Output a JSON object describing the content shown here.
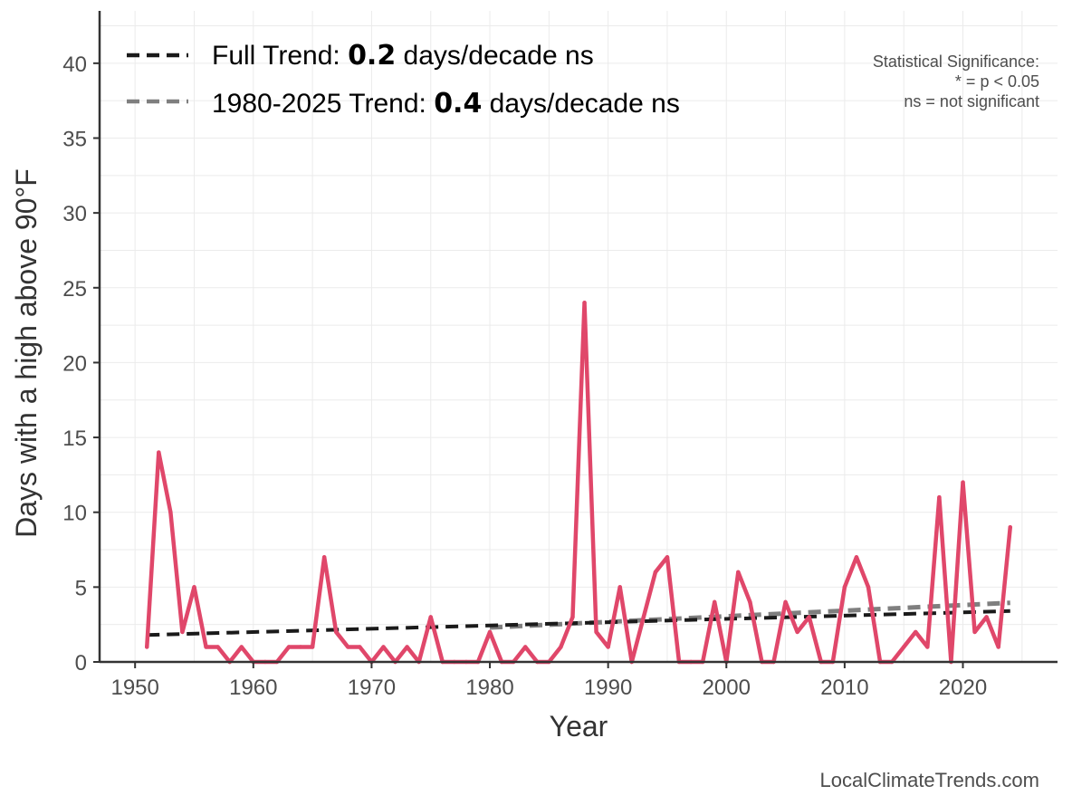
{
  "chart_data": {
    "type": "line",
    "xlabel": "Year",
    "ylabel": "Days with a high above 90°F",
    "xlim": [
      1947,
      2028
    ],
    "ylim": [
      0,
      43.5
    ],
    "x_ticks": [
      1950,
      1960,
      1970,
      1980,
      1990,
      2000,
      2010,
      2020
    ],
    "y_ticks": [
      0,
      5,
      10,
      15,
      20,
      25,
      30,
      35,
      40
    ],
    "grid": true,
    "series": [
      {
        "name": "Days above 90°F",
        "color": "#e0476a",
        "x": [
          1951,
          1952,
          1953,
          1954,
          1955,
          1956,
          1957,
          1958,
          1959,
          1960,
          1961,
          1962,
          1963,
          1964,
          1965,
          1966,
          1967,
          1968,
          1969,
          1970,
          1971,
          1972,
          1973,
          1974,
          1975,
          1976,
          1977,
          1978,
          1979,
          1980,
          1981,
          1982,
          1983,
          1984,
          1985,
          1986,
          1987,
          1988,
          1989,
          1990,
          1991,
          1992,
          1993,
          1994,
          1995,
          1996,
          1997,
          1998,
          1999,
          2000,
          2001,
          2002,
          2003,
          2004,
          2005,
          2006,
          2007,
          2008,
          2009,
          2010,
          2011,
          2012,
          2013,
          2014,
          2015,
          2016,
          2017,
          2018,
          2019,
          2020,
          2021,
          2022,
          2023,
          2024
        ],
        "values": [
          1,
          14,
          10,
          2,
          5,
          1,
          1,
          0,
          1,
          0,
          0,
          0,
          1,
          1,
          1,
          7,
          2,
          1,
          1,
          0,
          1,
          0,
          1,
          0,
          3,
          0,
          0,
          0,
          0,
          2,
          0,
          0,
          1,
          0,
          0,
          1,
          3,
          24,
          2,
          1,
          5,
          0,
          3,
          6,
          7,
          0,
          0,
          0,
          4,
          0,
          6,
          4,
          0,
          0,
          4,
          2,
          3,
          0,
          0,
          5,
          7,
          5,
          0,
          0,
          1,
          2,
          1,
          11,
          0,
          12,
          2,
          3,
          1,
          9
        ]
      }
    ],
    "trends": [
      {
        "name": "Full Trend",
        "label_prefix": "Full Trend: ",
        "value": "0.2",
        "label_suffix": " days/decade ns",
        "color": "#1a1a1a",
        "x": [
          1951,
          2024
        ],
        "y": [
          1.8,
          3.4
        ]
      },
      {
        "name": "1980-2025 Trend",
        "label_prefix": "1980-2025 Trend: ",
        "value": "0.4",
        "label_suffix": " days/decade ns",
        "color": "#7f7f7f",
        "x": [
          1980,
          2024
        ],
        "y": [
          2.3,
          3.95
        ]
      }
    ],
    "legend_position": "top-left",
    "annotation": {
      "lines": [
        "Statistical Significance:",
        "* = p < 0.05",
        "ns = not significant"
      ]
    }
  },
  "credit": "LocalClimateTrends.com"
}
